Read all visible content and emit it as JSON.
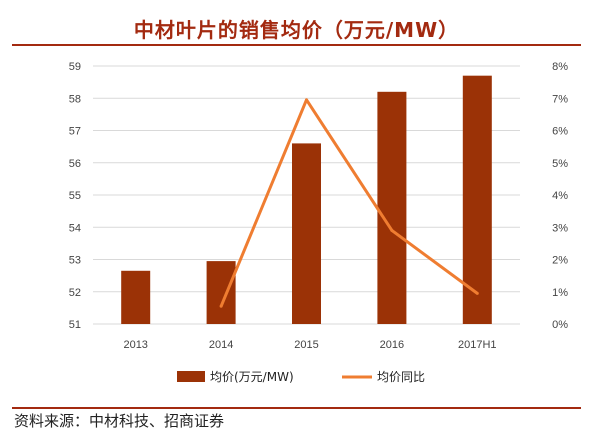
{
  "title": "中材叶片的销售均价（万元/MW）",
  "source": "资料来源：中材科技、招商证券",
  "colors": {
    "bar": "#9b3206",
    "line": "#ef7d31",
    "accent": "#a32a10",
    "grid": "#d9d9d9"
  },
  "chart_data": {
    "type": "bar+line",
    "categories": [
      "2013",
      "2014",
      "2015",
      "2016",
      "2017H1"
    ],
    "series": [
      {
        "name": "均价(万元/MW)",
        "type": "bar",
        "axis": "left",
        "values": [
          52.65,
          52.95,
          56.6,
          58.2,
          58.7
        ]
      },
      {
        "name": "均价同比",
        "type": "line",
        "axis": "right",
        "values": [
          null,
          0.55,
          6.95,
          2.9,
          0.95
        ]
      }
    ],
    "y_left": {
      "min": 51,
      "max": 59,
      "step": 1,
      "tick_labels": [
        "51",
        "52",
        "53",
        "54",
        "55",
        "56",
        "57",
        "58",
        "59"
      ]
    },
    "y_right": {
      "min": 0,
      "max": 8,
      "step": 1,
      "tick_labels": [
        "0%",
        "1%",
        "2%",
        "3%",
        "4%",
        "5%",
        "6%",
        "7%",
        "8%"
      ]
    },
    "grid": true,
    "legend_position": "bottom"
  }
}
